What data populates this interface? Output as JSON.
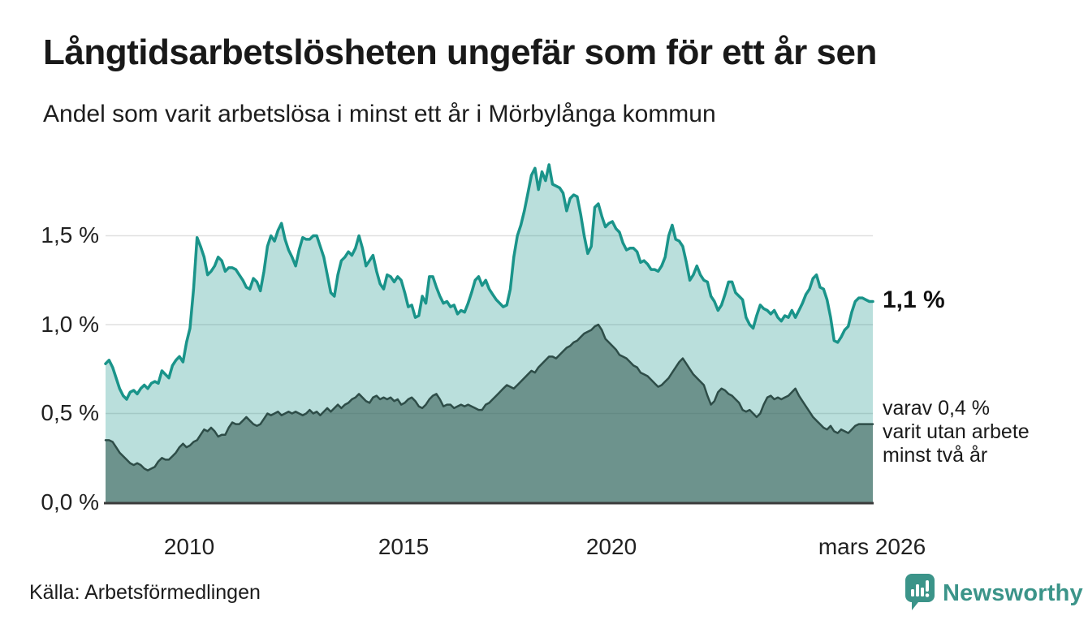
{
  "header": {
    "title": "Långtidsarbetslösheten ungefär som för ett år sen",
    "subtitle": "Andel som varit arbetslösa i minst ett år i Mörbylånga kommun"
  },
  "chart_data": {
    "type": "area",
    "title": "Långtidsarbetslösheten ungefär som för ett år sen",
    "subtitle": "Andel som varit arbetslösa i minst ett år i Mörbylånga kommun",
    "unit": "%",
    "x_range": [
      "2008-01",
      "2026-03"
    ],
    "x_tick_labels": [
      "2010",
      "2015",
      "2020",
      "mars 2026"
    ],
    "y_tick_labels": [
      "1,5 %",
      "1,0 %",
      "0,5 %",
      "0,0 %"
    ],
    "ylim": [
      0,
      1.95
    ],
    "gridline_values": [
      0.5,
      1.0,
      1.5
    ],
    "gridline_color": "#e0e0e0",
    "axis_line_color": "#3b3b3b",
    "legend_position": "right-annotations",
    "series": [
      {
        "name": "Arbetslösa minst ett år",
        "line_color": "#1a948a",
        "fill_color": "rgba(26,148,138,0.30)",
        "line_width": 3.5,
        "values": [
          0.78,
          0.8,
          0.76,
          0.7,
          0.64,
          0.6,
          0.58,
          0.62,
          0.63,
          0.61,
          0.64,
          0.66,
          0.64,
          0.67,
          0.68,
          0.67,
          0.74,
          0.72,
          0.7,
          0.77,
          0.8,
          0.82,
          0.79,
          0.9,
          0.98,
          1.2,
          1.49,
          1.44,
          1.38,
          1.28,
          1.3,
          1.33,
          1.38,
          1.36,
          1.3,
          1.32,
          1.32,
          1.31,
          1.28,
          1.25,
          1.21,
          1.2,
          1.26,
          1.24,
          1.19,
          1.3,
          1.44,
          1.5,
          1.47,
          1.53,
          1.57,
          1.48,
          1.42,
          1.38,
          1.33,
          1.42,
          1.49,
          1.48,
          1.48,
          1.5,
          1.5,
          1.44,
          1.38,
          1.28,
          1.18,
          1.16,
          1.28,
          1.36,
          1.38,
          1.41,
          1.39,
          1.43,
          1.5,
          1.43,
          1.33,
          1.36,
          1.39,
          1.3,
          1.23,
          1.2,
          1.28,
          1.27,
          1.24,
          1.27,
          1.25,
          1.18,
          1.1,
          1.11,
          1.04,
          1.05,
          1.16,
          1.12,
          1.27,
          1.27,
          1.21,
          1.16,
          1.12,
          1.13,
          1.1,
          1.11,
          1.06,
          1.08,
          1.07,
          1.12,
          1.18,
          1.25,
          1.27,
          1.22,
          1.25,
          1.2,
          1.17,
          1.14,
          1.12,
          1.1,
          1.11,
          1.2,
          1.38,
          1.5,
          1.56,
          1.64,
          1.74,
          1.84,
          1.88,
          1.76,
          1.86,
          1.81,
          1.9,
          1.79,
          1.78,
          1.77,
          1.74,
          1.64,
          1.71,
          1.73,
          1.72,
          1.62,
          1.5,
          1.4,
          1.44,
          1.66,
          1.68,
          1.61,
          1.55,
          1.57,
          1.58,
          1.54,
          1.52,
          1.46,
          1.42,
          1.43,
          1.43,
          1.41,
          1.35,
          1.36,
          1.34,
          1.31,
          1.31,
          1.3,
          1.33,
          1.38,
          1.5,
          1.56,
          1.48,
          1.47,
          1.44,
          1.35,
          1.25,
          1.28,
          1.33,
          1.28,
          1.25,
          1.24,
          1.16,
          1.13,
          1.08,
          1.11,
          1.17,
          1.24,
          1.24,
          1.18,
          1.16,
          1.14,
          1.04,
          1.0,
          0.98,
          1.05,
          1.11,
          1.09,
          1.08,
          1.06,
          1.08,
          1.04,
          1.02,
          1.05,
          1.04,
          1.08,
          1.04,
          1.08,
          1.12,
          1.17,
          1.2,
          1.26,
          1.28,
          1.21,
          1.2,
          1.14,
          1.04,
          0.91,
          0.9,
          0.93,
          0.97,
          0.99,
          1.07,
          1.13,
          1.15,
          1.15,
          1.14,
          1.13,
          1.13
        ]
      },
      {
        "name": "Varav utan arbete minst två år",
        "line_color": "#2e4d48",
        "fill_color": "rgba(58,96,89,0.60)",
        "line_width": 2.5,
        "values": [
          0.35,
          0.35,
          0.34,
          0.31,
          0.28,
          0.26,
          0.24,
          0.22,
          0.21,
          0.22,
          0.21,
          0.19,
          0.18,
          0.19,
          0.2,
          0.23,
          0.25,
          0.24,
          0.24,
          0.26,
          0.28,
          0.31,
          0.33,
          0.31,
          0.32,
          0.34,
          0.35,
          0.38,
          0.41,
          0.4,
          0.42,
          0.4,
          0.37,
          0.38,
          0.38,
          0.42,
          0.45,
          0.44,
          0.44,
          0.46,
          0.48,
          0.46,
          0.44,
          0.43,
          0.44,
          0.47,
          0.5,
          0.49,
          0.5,
          0.51,
          0.49,
          0.5,
          0.51,
          0.5,
          0.51,
          0.5,
          0.49,
          0.5,
          0.52,
          0.5,
          0.51,
          0.49,
          0.51,
          0.53,
          0.51,
          0.53,
          0.55,
          0.53,
          0.55,
          0.56,
          0.58,
          0.59,
          0.61,
          0.59,
          0.57,
          0.56,
          0.59,
          0.6,
          0.58,
          0.59,
          0.58,
          0.59,
          0.57,
          0.58,
          0.55,
          0.56,
          0.58,
          0.59,
          0.57,
          0.54,
          0.53,
          0.55,
          0.58,
          0.6,
          0.61,
          0.58,
          0.54,
          0.55,
          0.55,
          0.53,
          0.54,
          0.55,
          0.54,
          0.55,
          0.54,
          0.53,
          0.52,
          0.52,
          0.55,
          0.56,
          0.58,
          0.6,
          0.62,
          0.64,
          0.66,
          0.65,
          0.64,
          0.66,
          0.68,
          0.7,
          0.72,
          0.74,
          0.73,
          0.76,
          0.78,
          0.8,
          0.82,
          0.82,
          0.81,
          0.83,
          0.85,
          0.87,
          0.88,
          0.9,
          0.91,
          0.93,
          0.95,
          0.96,
          0.97,
          0.99,
          1.0,
          0.97,
          0.92,
          0.9,
          0.88,
          0.86,
          0.83,
          0.82,
          0.81,
          0.79,
          0.77,
          0.76,
          0.73,
          0.72,
          0.71,
          0.69,
          0.67,
          0.65,
          0.66,
          0.68,
          0.7,
          0.73,
          0.76,
          0.79,
          0.81,
          0.78,
          0.75,
          0.72,
          0.7,
          0.68,
          0.66,
          0.6,
          0.55,
          0.57,
          0.62,
          0.64,
          0.63,
          0.61,
          0.6,
          0.58,
          0.56,
          0.52,
          0.51,
          0.52,
          0.5,
          0.48,
          0.5,
          0.55,
          0.59,
          0.6,
          0.58,
          0.59,
          0.58,
          0.59,
          0.6,
          0.62,
          0.64,
          0.6,
          0.57,
          0.54,
          0.51,
          0.48,
          0.46,
          0.44,
          0.42,
          0.41,
          0.43,
          0.4,
          0.39,
          0.41,
          0.4,
          0.39,
          0.41,
          0.43,
          0.44,
          0.44,
          0.44,
          0.44,
          0.44
        ]
      }
    ],
    "annotations": {
      "latest_total": "1,1 %",
      "two_year_line1": "varav 0,4 %",
      "two_year_line2": "varit utan arbete",
      "two_year_line3": "minst två år"
    }
  },
  "footer": {
    "source": "Källa: Arbetsförmedlingen",
    "brand_name": "Newsworthy",
    "brand_color": "#3b9489"
  }
}
